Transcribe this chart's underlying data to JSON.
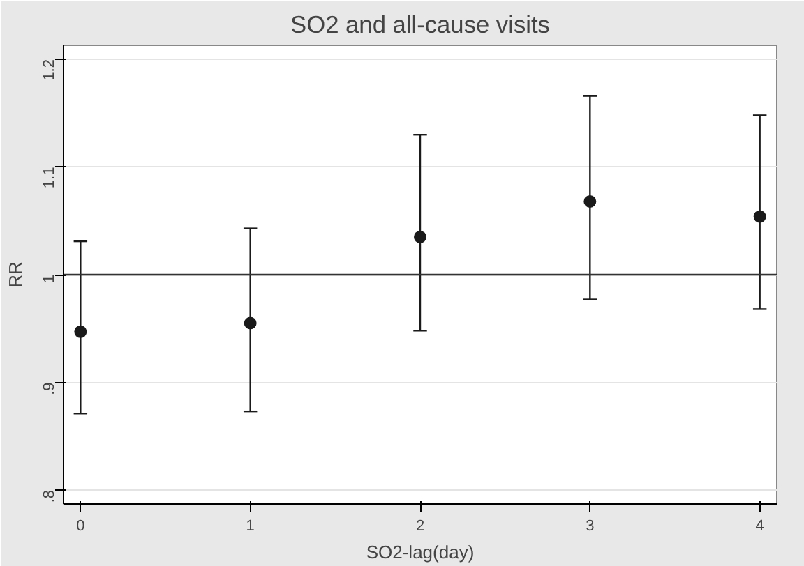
{
  "chart_data": {
    "type": "scatter",
    "title": "SO2 and all-cause visits",
    "xlabel": "SO2-lag(day)",
    "ylabel": "RR",
    "x": [
      0,
      1,
      2,
      3,
      4
    ],
    "values": [
      0.947,
      0.955,
      1.035,
      1.068,
      1.054
    ],
    "errors": [
      [
        0.871,
        1.031
      ],
      [
        0.873,
        1.043
      ],
      [
        0.948,
        1.13
      ],
      [
        0.977,
        1.166
      ],
      [
        0.968,
        1.148
      ]
    ],
    "color": "#1a1a1a",
    "marker": "circle",
    "xlim": [
      -0.1,
      4.1
    ],
    "ylim": [
      0.787,
      1.213
    ],
    "xticks": [
      0,
      1,
      2,
      3,
      4
    ],
    "yticks": [
      {
        "value": 0.8,
        "label": ".8"
      },
      {
        "value": 0.9,
        "label": ".9"
      },
      {
        "value": 1,
        "label": "1"
      },
      {
        "value": 1.1,
        "label": "1.1"
      },
      {
        "value": 1.2,
        "label": "1.2"
      }
    ],
    "grid": "y",
    "ref_lines": [
      {
        "axis": "y",
        "value": 1,
        "label": null,
        "color": "#333333"
      }
    ]
  }
}
